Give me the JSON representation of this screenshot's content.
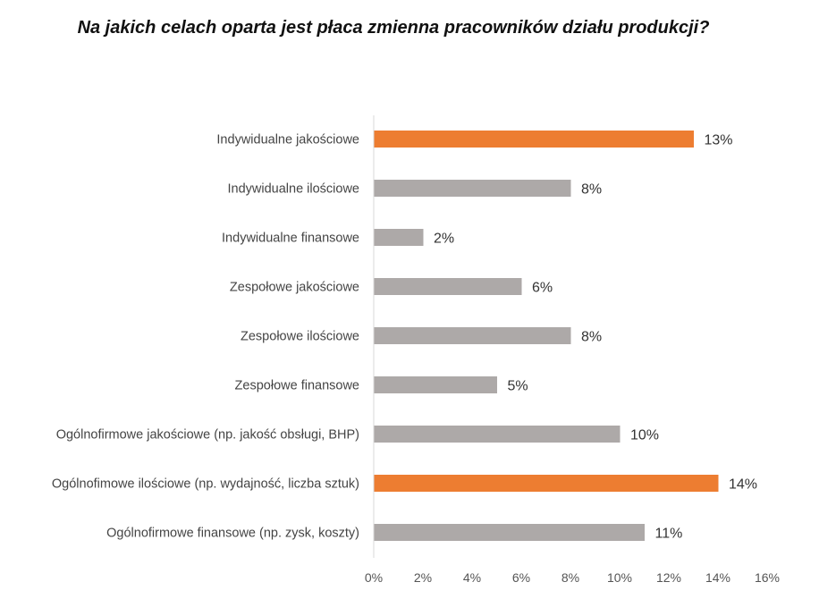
{
  "chart_data": {
    "type": "bar",
    "orientation": "horizontal",
    "title": "Na jakich celach oparta jest płaca zmienna pracowników działu produkcji?",
    "categories": [
      "Indywidualne jakościowe",
      "Indywidualne ilościowe",
      "Indywidualne finansowe",
      "Zespołowe jakościowe",
      "Zespołowe ilościowe",
      "Zespołowe finansowe",
      "Ogólnofirmowe jakościowe (np. jakość obsługi, BHP)",
      "Ogólnofimowe ilościowe (np. wydajność, liczba sztuk)",
      "Ogólnofirmowe finansowe (np. zysk, koszty)"
    ],
    "values": [
      13,
      8,
      2,
      6,
      8,
      5,
      10,
      14,
      11
    ],
    "value_labels": [
      "13%",
      "8%",
      "2%",
      "6%",
      "8%",
      "5%",
      "10%",
      "14%",
      "11%"
    ],
    "highlighted": [
      true,
      false,
      false,
      false,
      false,
      false,
      false,
      true,
      false
    ],
    "xlim": [
      0,
      16
    ],
    "x_ticks": [
      0,
      2,
      4,
      6,
      8,
      10,
      12,
      14,
      16
    ],
    "x_tick_labels": [
      "0%",
      "2%",
      "4%",
      "6%",
      "8%",
      "10%",
      "12%",
      "14%",
      "16%"
    ],
    "xlabel": "",
    "ylabel": "",
    "grid": false,
    "legend": "none",
    "colors": {
      "highlight": "#ED7D31",
      "default": "#ADA9A8",
      "axis": "#D9D9D9"
    }
  }
}
